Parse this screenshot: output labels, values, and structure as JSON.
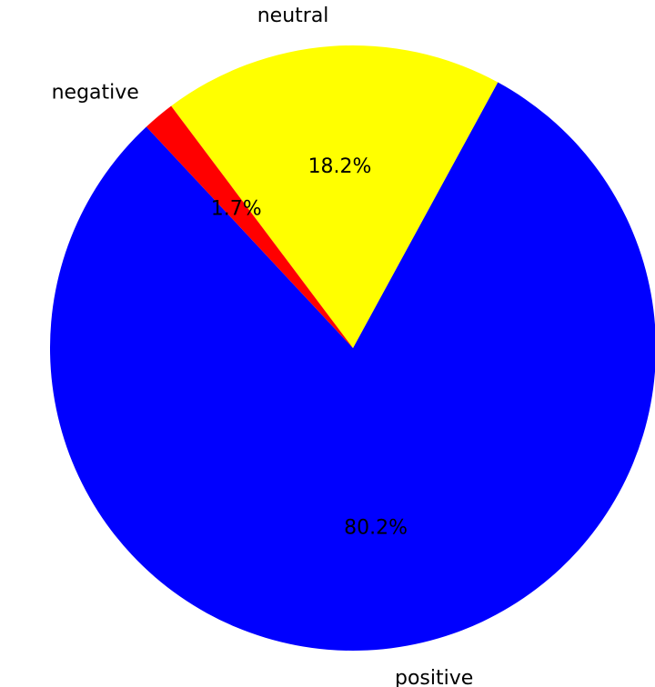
{
  "chart_data": {
    "type": "pie",
    "title": "",
    "categories": [
      "positive",
      "neutral",
      "negative"
    ],
    "values": [
      80.2,
      18.2,
      1.7
    ],
    "value_labels": [
      "80.2%",
      "18.2%",
      "1.7%"
    ],
    "colors": [
      "#0000ff",
      "#ffff00",
      "#ff0000"
    ],
    "start_angle_deg": 133,
    "direction": "counterclockwise",
    "legend": "none"
  }
}
